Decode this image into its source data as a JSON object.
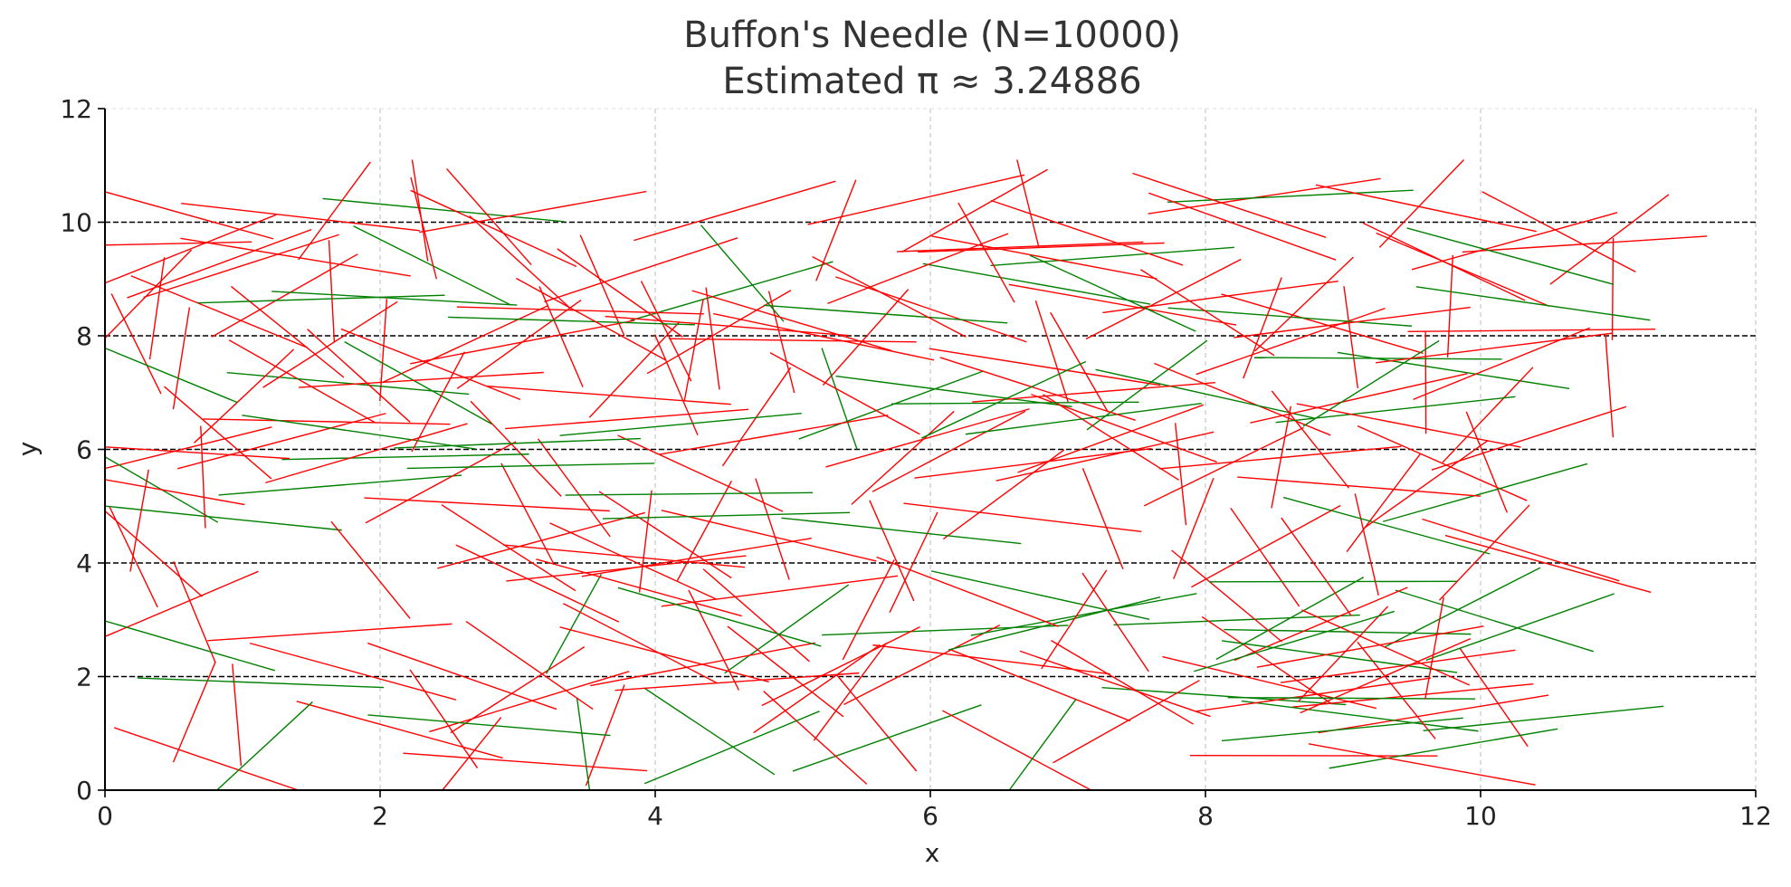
{
  "chart_data": {
    "type": "scatter",
    "title": "Buffon's Needle (N=10000)",
    "subtitle": "Estimated π ≈ 3.24886",
    "xlabel": "x",
    "ylabel": "y",
    "xlim": [
      0,
      12
    ],
    "ylim": [
      0,
      12
    ],
    "xticks": [
      0,
      2,
      4,
      6,
      8,
      10,
      12
    ],
    "yticks": [
      0,
      2,
      4,
      6,
      8,
      10,
      12
    ],
    "floor_lines_y": [
      2,
      4,
      6,
      8,
      10
    ],
    "grid": true,
    "colors": {
      "crossing": "#ff0000",
      "non_crossing": "#008000"
    },
    "needle_count_shown_approx": 300,
    "needle_length": 1.8
  }
}
